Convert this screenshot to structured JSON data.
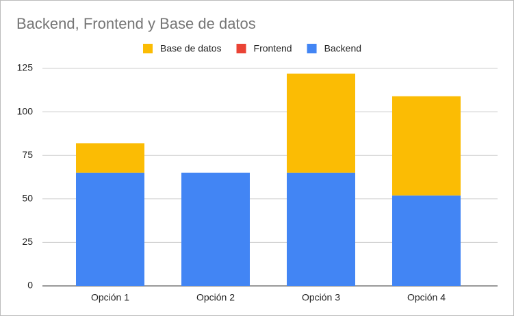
{
  "chart_data": {
    "type": "stacked_bar",
    "title": "Backend, Frontend  y Base de datos",
    "categories": [
      "Opción 1",
      "Opción 2",
      "Opción 3",
      "Opción 4"
    ],
    "series": [
      {
        "name": "Base de datos",
        "color": "#fbbc04",
        "values": [
          17,
          0,
          57,
          57
        ]
      },
      {
        "name": "Frontend",
        "color": "#ea4335",
        "values": [
          0,
          0,
          0,
          0
        ]
      },
      {
        "name": "Backend",
        "color": "#4285f4",
        "values": [
          65,
          65,
          65,
          52
        ]
      }
    ],
    "ylim": [
      0,
      125
    ],
    "yticks": [
      0,
      25,
      50,
      75,
      100,
      125
    ],
    "grid": true,
    "legend": "top"
  }
}
